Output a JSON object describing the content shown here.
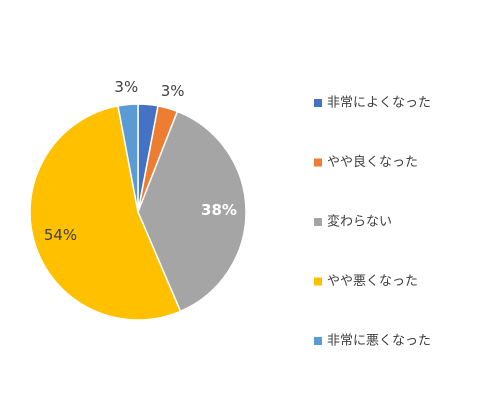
{
  "chart_data": {
    "type": "pie",
    "categories": [
      "非常によくなった",
      "やや良くなった",
      "変わらない",
      "やや悪くなった",
      "非常に悪くなった"
    ],
    "values": [
      3,
      3,
      38,
      54,
      3
    ],
    "value_labels": [
      null,
      "3%",
      "38%",
      "54%",
      "3%"
    ],
    "colors": [
      "#4472c4",
      "#ed7d31",
      "#a5a5a5",
      "#ffc000",
      "#5b9bd5"
    ],
    "legend": "right"
  }
}
